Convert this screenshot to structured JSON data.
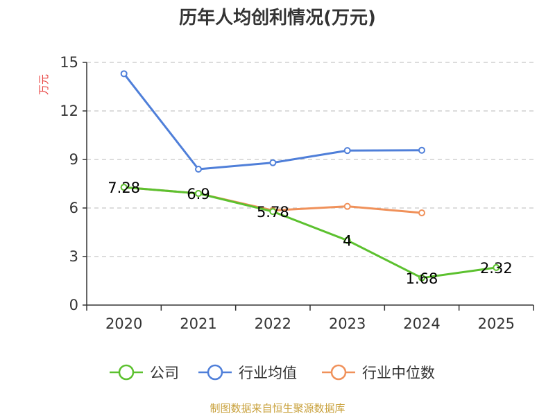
{
  "chart_data": {
    "type": "line",
    "title": "历年人均创利情况(万元)",
    "ylabel": "万元",
    "xlabel": "",
    "categories": [
      "2020",
      "2021",
      "2022",
      "2023",
      "2024",
      "2025"
    ],
    "ylim": [
      0,
      15
    ],
    "yticks": [
      0,
      3,
      6,
      9,
      12,
      15
    ],
    "grid": true,
    "legend_position": "bottom",
    "series": [
      {
        "name": "公司",
        "color": "#5cc12f",
        "values": [
          7.28,
          6.9,
          5.78,
          4,
          1.68,
          2.32
        ],
        "labels": [
          "7.28",
          "6.9",
          "5.78",
          "4",
          "1.68",
          "2.32"
        ]
      },
      {
        "name": "行业均值",
        "color": "#4f7fd9",
        "values": [
          14.3,
          8.4,
          8.8,
          9.55,
          9.57,
          null
        ]
      },
      {
        "name": "行业中位数",
        "color": "#f0915a",
        "values": [
          7.28,
          6.9,
          5.85,
          6.1,
          5.7,
          null
        ]
      }
    ]
  },
  "source": "制图数据来自恒生聚源数据库"
}
